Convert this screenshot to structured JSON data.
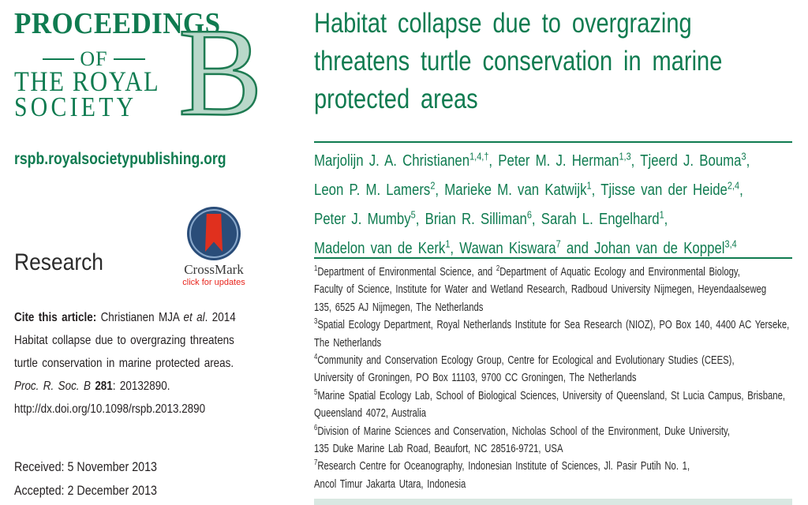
{
  "colors": {
    "brand_green": "#0f7b50",
    "logo_b_fill": "#b9d8ca",
    "crossmark_navy": "#2a4d79",
    "crossmark_red": "#e0301e",
    "abstract_bar_green": "#d9e8e2"
  },
  "journal": {
    "name_word1": "PROCEEDINGS",
    "name_word2": "OF",
    "name_word3": "THE ROYAL",
    "name_word4": "SOCIETY",
    "series_letter": "B",
    "website": "rspb.royalsocietypublishing.org"
  },
  "section": {
    "label": "Research"
  },
  "crossmark": {
    "name": "CrossMark",
    "tagline": "click for updates"
  },
  "citation": {
    "label": "Cite this article:",
    "line1_rest": " Christianen MJA ",
    "et_al": "et al",
    "line1_end": ". 2014",
    "line2": "Habitat collapse due to overgrazing threatens",
    "line3": "turtle conservation in marine protected areas.",
    "journal_abbrev": "Proc. R. Soc. B ",
    "volume": "281",
    "article_number": ": 20132890.",
    "doi": "http://dx.doi.org/10.1098/rspb.2013.2890"
  },
  "dates": {
    "received": "Received: 5 November 2013",
    "accepted": "Accepted: 2 December 2013"
  },
  "article": {
    "title_lines": [
      "Habitat collapse due to overgrazing",
      "threatens turtle conservation in marine",
      "protected areas"
    ],
    "author_lines": [
      [
        {
          "name": "Marjolijn J. A. Christianen",
          "sup": "1,4,†",
          "trail": ", "
        },
        {
          "name": "Peter M. J. Herman",
          "sup": "1,3",
          "trail": ", "
        },
        {
          "name": "Tjeerd J. Bouma",
          "sup": "3",
          "trail": ","
        }
      ],
      [
        {
          "name": "Leon P. M. Lamers",
          "sup": "2",
          "trail": ", "
        },
        {
          "name": "Marieke M. van Katwijk",
          "sup": "1",
          "trail": ", "
        },
        {
          "name": "Tjisse van der Heide",
          "sup": "2,4",
          "trail": ","
        }
      ],
      [
        {
          "name": "Peter J. Mumby",
          "sup": "5",
          "trail": ", "
        },
        {
          "name": "Brian R. Silliman",
          "sup": "6",
          "trail": ", "
        },
        {
          "name": "Sarah L. Engelhard",
          "sup": "1",
          "trail": ","
        }
      ],
      [
        {
          "name": "Madelon van de Kerk",
          "sup": "1",
          "trail": ", "
        },
        {
          "name": "Wawan Kiswara",
          "sup": "7",
          "trail": " and "
        },
        {
          "name": "Johan van de Koppel",
          "sup": "3,4",
          "trail": ""
        }
      ]
    ],
    "affiliation_lines": [
      [
        {
          "sup": "1",
          "text": "Department of Environmental Science, and "
        },
        {
          "sup": "2",
          "text": "Department of Aquatic Ecology and Environmental Biology,"
        }
      ],
      [
        {
          "sup": "",
          "text": "Faculty of Science, Institute for Water and Wetland Research, Radboud University Nijmegen, Heyendaalseweg"
        }
      ],
      [
        {
          "sup": "",
          "text": "135, 6525 AJ Nijmegen, The Netherlands"
        }
      ],
      [
        {
          "sup": "3",
          "text": "Spatial Ecology Department, Royal Netherlands Institute for Sea Research (NIOZ), PO Box 140, 4400 AC Yerseke,"
        }
      ],
      [
        {
          "sup": "",
          "text": "The Netherlands"
        }
      ],
      [
        {
          "sup": "4",
          "text": "Community and Conservation Ecology Group, Centre for Ecological and Evolutionary Studies (CEES),"
        }
      ],
      [
        {
          "sup": "",
          "text": "University of Groningen, PO Box 11103, 9700 CC Groningen, The Netherlands"
        }
      ],
      [
        {
          "sup": "5",
          "text": "Marine Spatial Ecology Lab, School of Biological Sciences, University of Queensland, St Lucia Campus, Brisbane,"
        }
      ],
      [
        {
          "sup": "",
          "text": "Queensland 4072, Australia"
        }
      ],
      [
        {
          "sup": "6",
          "text": "Division of Marine Sciences and Conservation, Nicholas School of the Environment, Duke University,"
        }
      ],
      [
        {
          "sup": "",
          "text": "135 Duke Marine Lab Road, Beaufort, NC 28516-9721, USA"
        }
      ],
      [
        {
          "sup": "7",
          "text": "Research Centre for Oceanography, Indonesian Institute of Sciences, Jl. Pasir Putih No. 1,"
        }
      ],
      [
        {
          "sup": "",
          "text": "Ancol Timur Jakarta Utara, Indonesia"
        }
      ]
    ]
  }
}
